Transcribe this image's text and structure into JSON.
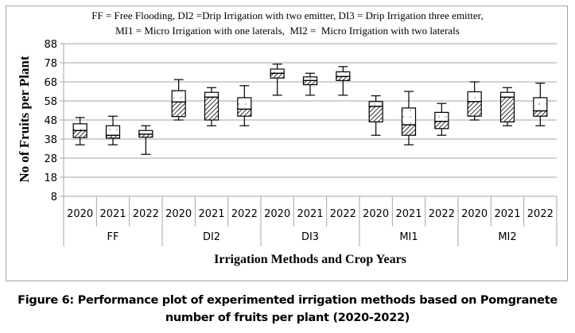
{
  "legend": {
    "line1": "FF = Free Flooding, DI2 =Drip Irrigation with two emitter, DI3 = Drip Irrigation three emitter,",
    "line2": "MI1 = Micro Irrigation with one laterals,  MI2 =  Micro Irrigation with two laterals"
  },
  "caption": {
    "line1": "Figure 6: Performance plot of experimented irrigation methods based on Pomgranete",
    "line2": "number of fruits per plant  (2020-2022)"
  },
  "colors": {
    "grid": "#a6a6a6",
    "box_stroke": "#000000",
    "hatch": "#000000",
    "frame": "#a6a6a6"
  },
  "chart_data": {
    "type": "boxplot",
    "title": "",
    "xlabel": "Irrigation Methods and Crop Years",
    "ylabel": "No of Fruits per Plant",
    "ylim": [
      8,
      88
    ],
    "yticks": [
      8,
      18,
      28,
      38,
      48,
      58,
      68,
      78,
      88
    ],
    "grid": true,
    "groups": [
      "FF",
      "DI2",
      "DI3",
      "MI1",
      "MI2"
    ],
    "years": [
      "2020",
      "2021",
      "2022"
    ],
    "lower_box_fill": "diagonal-hatch",
    "upper_box_fill": "dotted",
    "boxes": [
      {
        "group": "FF",
        "year": "2020",
        "min": 35,
        "q1": 38.8,
        "median": 42.5,
        "q3": 46,
        "max": 49.3
      },
      {
        "group": "FF",
        "year": "2021",
        "min": 35,
        "q1": 38.5,
        "median": 40,
        "q3": 45,
        "max": 50
      },
      {
        "group": "FF",
        "year": "2022",
        "min": 30,
        "q1": 39,
        "median": 40.6,
        "q3": 42.5,
        "max": 45
      },
      {
        "group": "DI2",
        "year": "2020",
        "min": 48,
        "q1": 49.8,
        "median": 57.5,
        "q3": 63.4,
        "max": 69.2
      },
      {
        "group": "DI2",
        "year": "2021",
        "min": 45,
        "q1": 48,
        "median": 60,
        "q3": 62.5,
        "max": 65
      },
      {
        "group": "DI2",
        "year": "2022",
        "min": 45,
        "q1": 50,
        "median": 53.7,
        "q3": 59.7,
        "max": 66
      },
      {
        "group": "DI3",
        "year": "2020",
        "min": 61,
        "q1": 70,
        "median": 72.5,
        "q3": 74.7,
        "max": 77.3
      },
      {
        "group": "DI3",
        "year": "2021",
        "min": 61,
        "q1": 66.5,
        "median": 68.7,
        "q3": 70.6,
        "max": 72.5
      },
      {
        "group": "DI3",
        "year": "2022",
        "min": 61,
        "q1": 68.7,
        "median": 70.8,
        "q3": 73.3,
        "max": 76
      },
      {
        "group": "MI1",
        "year": "2020",
        "min": 40,
        "q1": 47,
        "median": 55.2,
        "q3": 57.7,
        "max": 60.7
      },
      {
        "group": "MI1",
        "year": "2021",
        "min": 35,
        "q1": 40,
        "median": 45.5,
        "q3": 54.3,
        "max": 63
      },
      {
        "group": "MI1",
        "year": "2022",
        "min": 40,
        "q1": 43.5,
        "median": 47.3,
        "q3": 52,
        "max": 56.7
      },
      {
        "group": "MI2",
        "year": "2020",
        "min": 48,
        "q1": 50,
        "median": 57.7,
        "q3": 62.8,
        "max": 68
      },
      {
        "group": "MI2",
        "year": "2021",
        "min": 45,
        "q1": 47,
        "median": 60,
        "q3": 62.5,
        "max": 65
      },
      {
        "group": "MI2",
        "year": "2022",
        "min": 45,
        "q1": 50,
        "median": 52.8,
        "q3": 59.7,
        "max": 67.3
      }
    ]
  }
}
